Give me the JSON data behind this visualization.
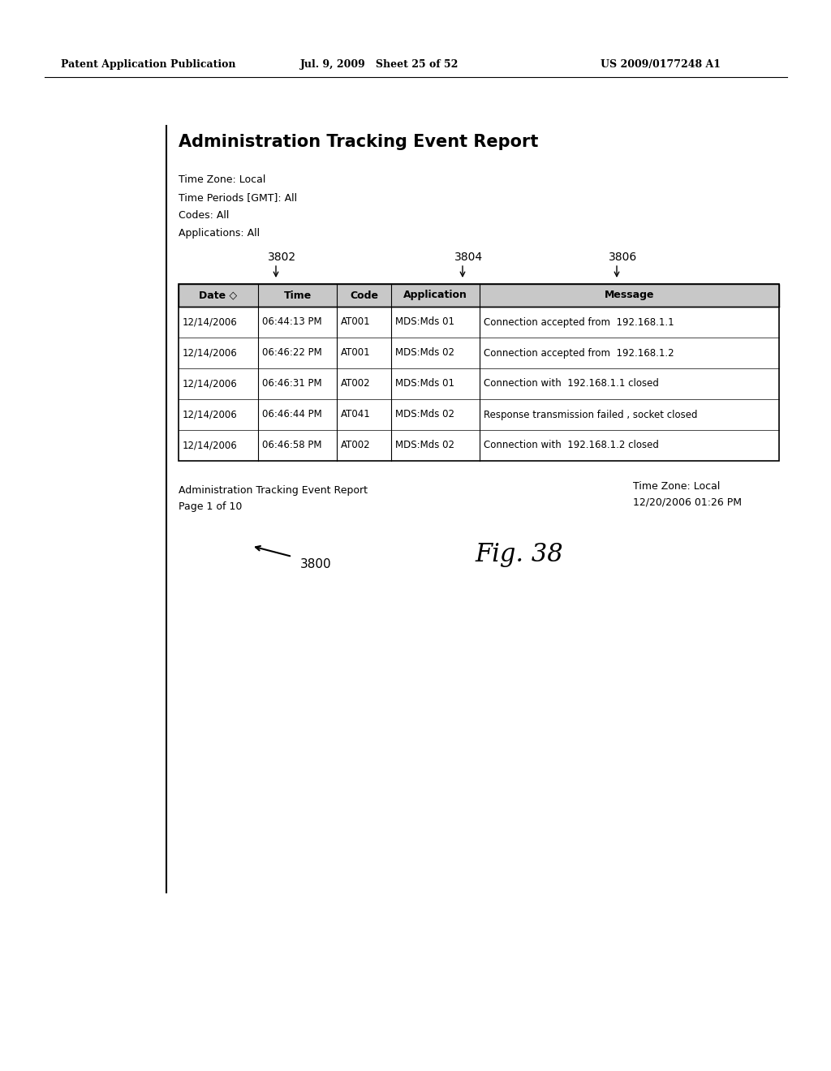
{
  "header_left": "Patent Application Publication",
  "header_mid": "Jul. 9, 2009   Sheet 25 of 52",
  "header_right": "US 2009/0177248 A1",
  "title": "Administration Tracking Event Report",
  "meta_lines": [
    "Time Zone: Local",
    "Time Periods [GMT]: All",
    "Codes: All",
    "Applications: All"
  ],
  "label_3802": "3802",
  "label_3804": "3804",
  "label_3806": "3806",
  "col_headers": [
    "Date ◇",
    "Time",
    "Code",
    "Application",
    "Message"
  ],
  "table_data": [
    [
      "12/14/2006",
      "06:44:13 PM",
      "AT001",
      "MDS:Mds 01",
      "Connection accepted from  192.168.1.1"
    ],
    [
      "12/14/2006",
      "06:46:22 PM",
      "AT001",
      "MDS:Mds 02",
      "Connection accepted from  192.168.1.2"
    ],
    [
      "12/14/2006",
      "06:46:31 PM",
      "AT002",
      "MDS:Mds 01",
      "Connection with  192.168.1.1 closed"
    ],
    [
      "12/14/2006",
      "06:46:44 PM",
      "AT041",
      "MDS:Mds 02",
      "Response transmission failed , socket closed"
    ],
    [
      "12/14/2006",
      "06:46:58 PM",
      "AT002",
      "MDS:Mds 02",
      "Connection with  192.168.1.2 closed"
    ]
  ],
  "footer_line1": "Administration Tracking Event Report",
  "footer_line2": "Page 1 of 10",
  "label_3800": "3800",
  "bottom_right_line1": "Time Zone: Local",
  "bottom_right_line2": "12/20/2006 01:26 PM",
  "fig_label": "Fig. 38",
  "bg_color": "#ffffff"
}
